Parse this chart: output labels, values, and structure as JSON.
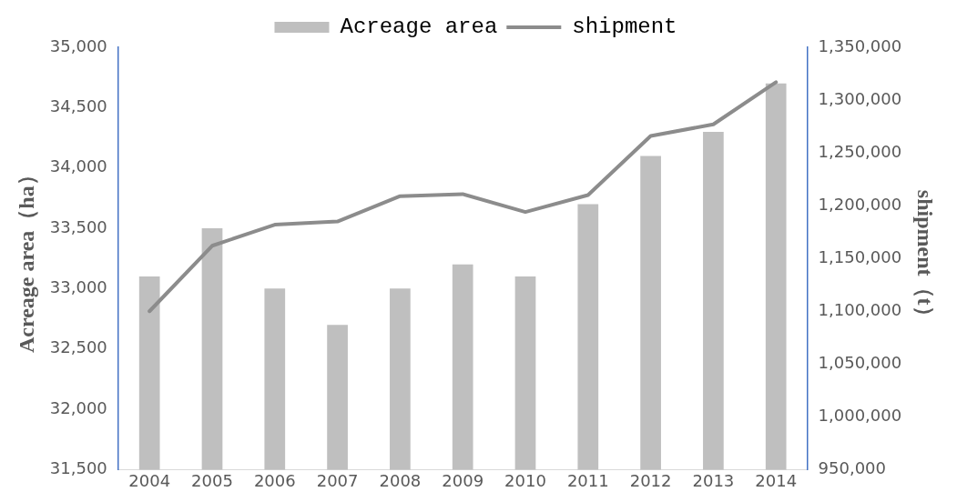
{
  "chart_data": {
    "type": "bar",
    "categories": [
      "2004",
      "2005",
      "2006",
      "2007",
      "2008",
      "2009",
      "2010",
      "2011",
      "2012",
      "2013",
      "2014"
    ],
    "series": [
      {
        "name": "Acreage area",
        "color": "#bfbfbf",
        "values": [
          33100,
          33500,
          33000,
          32700,
          33000,
          33200,
          33100,
          33700,
          34100,
          34300,
          34700
        ]
      },
      {
        "name": "shipment",
        "type": "line",
        "axis": "y2",
        "color": "#8c8c8c",
        "values": [
          1100000,
          1162000,
          1182000,
          1185000,
          1209000,
          1211000,
          1194000,
          1210000,
          1266000,
          1277000,
          1317000
        ]
      }
    ],
    "ylabel": "Acreage area（ha）",
    "y2label": "shipment（t）",
    "ylim": [
      31500,
      35000
    ],
    "yticks": [
      {
        "value": 31500,
        "label": "31,500"
      },
      {
        "value": 32000,
        "label": "32,000"
      },
      {
        "value": 32500,
        "label": "32,500"
      },
      {
        "value": 33000,
        "label": "33,000"
      },
      {
        "value": 33500,
        "label": "33,500"
      },
      {
        "value": 34000,
        "label": "34,000"
      },
      {
        "value": 34500,
        "label": "34,500"
      },
      {
        "value": 35000,
        "label": "35,000"
      }
    ],
    "y2lim": [
      950000,
      1350000
    ],
    "y2ticks": [
      {
        "value": 950000,
        "label": "950,000"
      },
      {
        "value": 1000000,
        "label": "1,000,000"
      },
      {
        "value": 1050000,
        "label": "1,050,000"
      },
      {
        "value": 1100000,
        "label": "1,100,000"
      },
      {
        "value": 1150000,
        "label": "1,150,000"
      },
      {
        "value": 1200000,
        "label": "1,200,000"
      },
      {
        "value": 1250000,
        "label": "1,250,000"
      },
      {
        "value": 1300000,
        "label": "1,300,000"
      },
      {
        "value": 1350000,
        "label": "1,350,000"
      }
    ],
    "grid": false,
    "legend": "top",
    "marker": "none"
  }
}
